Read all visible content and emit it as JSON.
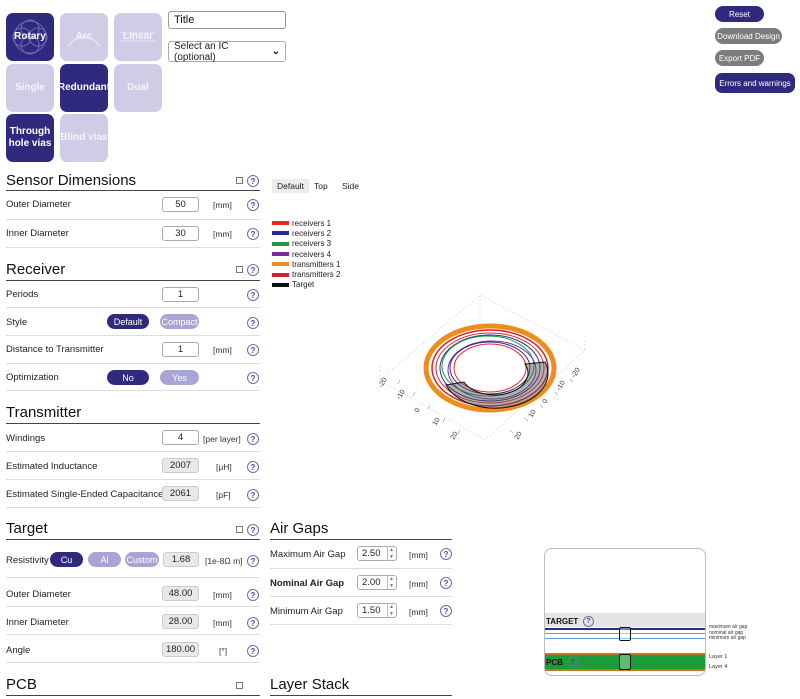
{
  "tiles": {
    "rotary": "Rotary",
    "arc": "Arc",
    "linear": "Linear",
    "single": "Single",
    "redundant": "Redundant",
    "dual": "Dual",
    "through_hole_vias": "Through hole vias",
    "blind_vias": "Blind vias"
  },
  "header": {
    "title_value": "Title",
    "ic_select": "Select an IC (optional)"
  },
  "actions": {
    "reset": "Reset",
    "download_design": "Download Design",
    "export_pdf": "Export PDF",
    "errors_warnings": "Errors and warnings"
  },
  "sensor": {
    "title": "Sensor Dimensions",
    "outer_label": "Outer Diameter",
    "outer_value": "50",
    "outer_unit": "[mm]",
    "inner_label": "Inner Diameter",
    "inner_value": "30",
    "inner_unit": "[mm]"
  },
  "receiver": {
    "title": "Receiver",
    "periods_label": "Periods",
    "periods_value": "1",
    "style_label": "Style",
    "style_default": "Default",
    "style_compact": "Compact",
    "distance_label": "Distance to Transmitter",
    "distance_value": "1",
    "distance_unit": "[mm]",
    "optimization_label": "Optimization",
    "opt_no": "No",
    "opt_yes": "Yes"
  },
  "transmitter": {
    "title": "Transmitter",
    "windings_label": "Windings",
    "windings_value": "4",
    "windings_unit": "[per layer]",
    "inductance_label": "Estimated Inductance",
    "inductance_value": "2007",
    "inductance_unit": "[μH]",
    "capacitance_label": "Estimated Single-Ended Capacitance",
    "capacitance_value": "2061",
    "capacitance_unit": "[pF]"
  },
  "target": {
    "title": "Target",
    "resistivity_label": "Resistivity",
    "res_cu": "Cu",
    "res_al": "Al",
    "res_custom": "Custom",
    "res_value": "1.68",
    "res_unit": "[1e-8Ω m]",
    "outer_label": "Outer Diameter",
    "outer_value": "48.00",
    "outer_unit": "[mm]",
    "inner_label": "Inner Diameter",
    "inner_value": "28.00",
    "inner_unit": "[mm]",
    "angle_label": "Angle",
    "angle_value": "180.00",
    "angle_unit": "[°]"
  },
  "pcb": {
    "title": "PCB"
  },
  "airgaps": {
    "title": "Air Gaps",
    "max_label": "Maximum Air Gap",
    "max_value": "2.50",
    "max_unit": "[mm]",
    "nom_label": "Nominal Air Gap",
    "nom_value": "2.00",
    "nom_unit": "[mm]",
    "min_label": "Minimum Air Gap",
    "min_value": "1.50",
    "min_unit": "[mm]"
  },
  "layerstack": {
    "title": "Layer Stack",
    "target_label": "TARGET",
    "pcb_label": "PCB",
    "max_gap_label": "maximum air gap",
    "nom_gap_label": "nominal air gap",
    "min_gap_label": "minimum air gap",
    "layer1": "Layer 1",
    "layer4": "Layer 4"
  },
  "view": {
    "tabs": [
      "Default",
      "Top",
      "Side"
    ],
    "legend": [
      {
        "name": "receivers 1",
        "color": "#e8262b"
      },
      {
        "name": "receivers 2",
        "color": "#2b2a8c"
      },
      {
        "name": "receivers 3",
        "color": "#1f9a3b"
      },
      {
        "name": "receivers 4",
        "color": "#7c2a9c"
      },
      {
        "name": "transmitters 1",
        "color": "#f08c1c"
      },
      {
        "name": "transmitters 2",
        "color": "#d2232a"
      },
      {
        "name": "Target",
        "color": "#111111"
      }
    ],
    "ticks_left": [
      "-20",
      "-10",
      "0",
      "10",
      "20"
    ],
    "ticks_right": [
      "-20",
      "-10",
      "0",
      "10",
      "20"
    ]
  },
  "colors": {
    "accent": "#2f2a7e",
    "accent_light": "#a8a5d6",
    "tile_off": "#cfcde6"
  }
}
